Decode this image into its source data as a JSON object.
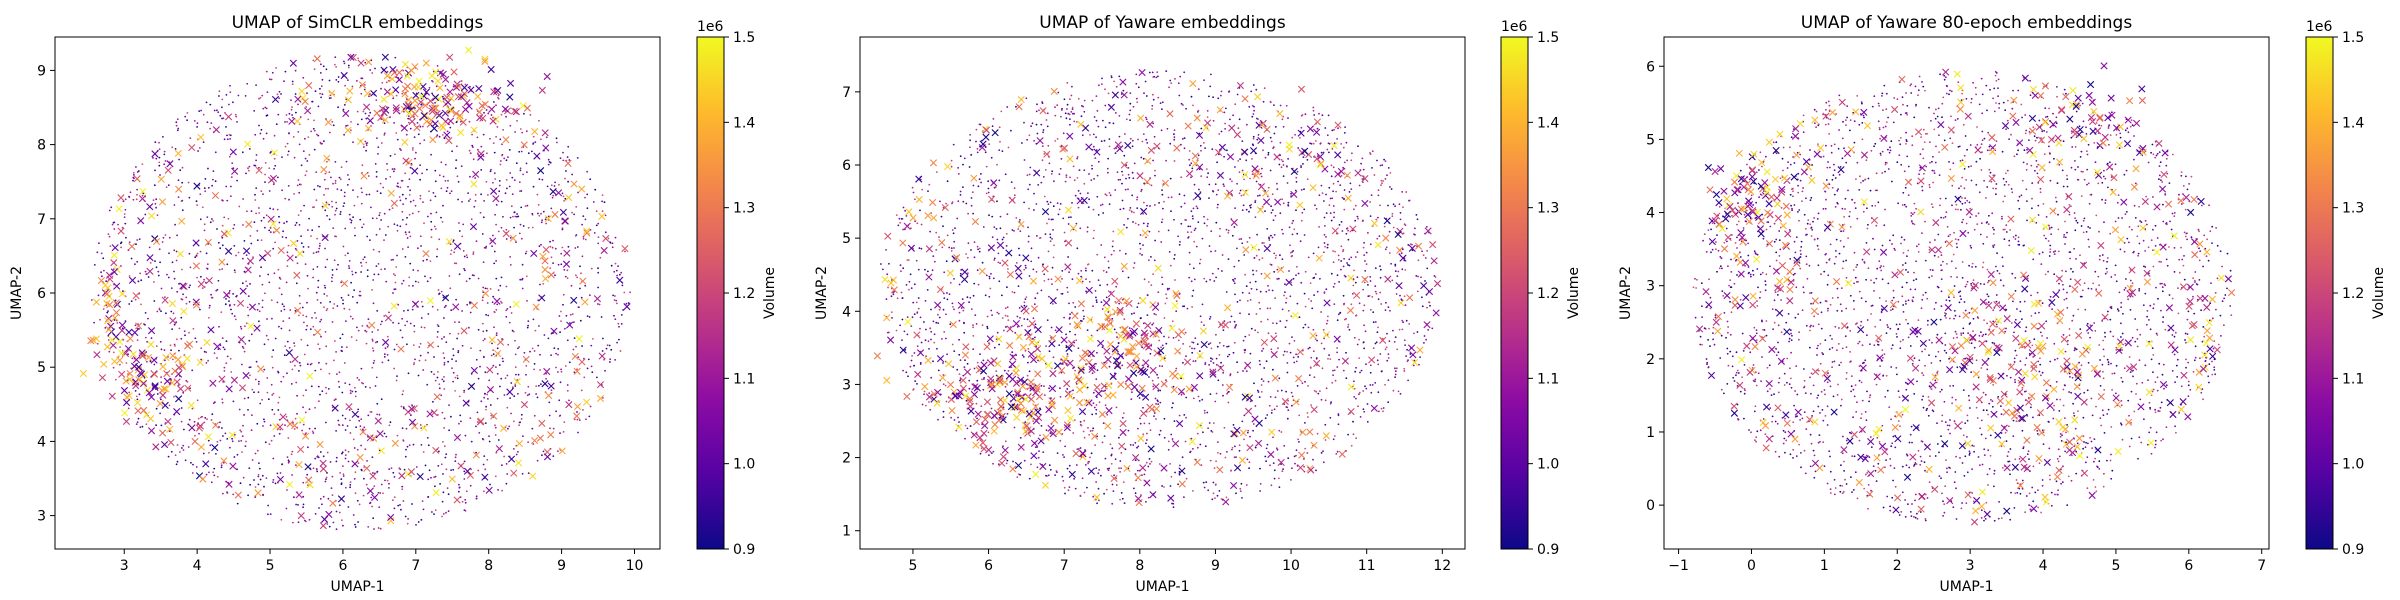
{
  "figure": {
    "colormap": "plasma",
    "marker_styles": {
      "normal": "dot",
      "highlighted": "x"
    }
  },
  "chart_data": [
    {
      "type": "scatter",
      "title": "UMAP of SimCLR embeddings",
      "xlabel": "UMAP-1",
      "ylabel": "UMAP-2",
      "xlim": [
        2.05,
        10.35
      ],
      "ylim": [
        2.55,
        9.45
      ],
      "xticks": [
        3,
        4,
        5,
        6,
        7,
        8,
        9,
        10
      ],
      "yticks": [
        3,
        4,
        5,
        6,
        7,
        8,
        9
      ],
      "colorbar": {
        "label": "Volume",
        "range": [
          0.9,
          1.5
        ],
        "ticks": [
          0.9,
          1.0,
          1.1,
          1.2,
          1.3,
          1.4,
          1.5
        ],
        "exponent": "1e6"
      },
      "point_cloud": {
        "center": [
          6.25,
          6.0
        ],
        "radius": [
          3.7,
          3.2
        ],
        "n_dots": 2600,
        "n_crosses": 380
      },
      "dense_clusters": [
        {
          "x": 7.2,
          "y": 8.6,
          "sx": 0.55,
          "sy": 0.25,
          "n": 120
        },
        {
          "x": 3.3,
          "y": 4.8,
          "sx": 0.35,
          "sy": 0.35,
          "n": 70
        },
        {
          "x": 2.8,
          "y": 5.6,
          "sx": 0.15,
          "sy": 0.3,
          "n": 30
        }
      ]
    },
    {
      "type": "scatter",
      "title": "UMAP of Yaware embeddings",
      "xlabel": "UMAP-1",
      "ylabel": "UMAP-2",
      "xlim": [
        4.3,
        12.3
      ],
      "ylim": [
        0.75,
        7.75
      ],
      "xticks": [
        5,
        6,
        7,
        8,
        9,
        10,
        11,
        12
      ],
      "yticks": [
        1,
        2,
        3,
        4,
        5,
        6,
        7
      ],
      "colorbar": {
        "label": "Volume",
        "range": [
          0.9,
          1.5
        ],
        "ticks": [
          0.9,
          1.0,
          1.1,
          1.2,
          1.3,
          1.4,
          1.5
        ],
        "exponent": "1e6"
      },
      "point_cloud": {
        "center": [
          8.25,
          4.3
        ],
        "radius": [
          3.7,
          3.0
        ],
        "n_dots": 2600,
        "n_crosses": 320
      },
      "dense_clusters": [
        {
          "x": 6.2,
          "y": 2.9,
          "sx": 0.6,
          "sy": 0.35,
          "n": 150
        },
        {
          "x": 7.8,
          "y": 3.5,
          "sx": 0.5,
          "sy": 0.5,
          "n": 130
        },
        {
          "x": 9.8,
          "y": 6.2,
          "sx": 0.6,
          "sy": 0.4,
          "n": 40
        }
      ]
    },
    {
      "type": "scatter",
      "title": "UMAP of Yaware 80-epoch embeddings",
      "xlabel": "UMAP-1",
      "ylabel": "UMAP-2",
      "xlim": [
        -1.2,
        7.1
      ],
      "ylim": [
        -0.6,
        6.4
      ],
      "xticks": [
        -1,
        0,
        1,
        2,
        3,
        4,
        5,
        6,
        7
      ],
      "yticks": [
        0,
        1,
        2,
        3,
        4,
        5,
        6
      ],
      "colorbar": {
        "label": "Volume",
        "range": [
          0.9,
          1.5
        ],
        "ticks": [
          0.9,
          1.0,
          1.1,
          1.2,
          1.3,
          1.4,
          1.5
        ],
        "exponent": "1e6"
      },
      "point_cloud": {
        "center": [
          2.9,
          2.85
        ],
        "radius": [
          3.7,
          3.1
        ],
        "n_dots": 2600,
        "n_crosses": 380
      },
      "dense_clusters": [
        {
          "x": 0.0,
          "y": 4.2,
          "sx": 0.35,
          "sy": 0.35,
          "n": 70
        },
        {
          "x": 3.6,
          "y": 2.0,
          "sx": 0.6,
          "sy": 0.6,
          "n": 120
        },
        {
          "x": 4.6,
          "y": 5.3,
          "sx": 0.4,
          "sy": 0.3,
          "n": 40
        }
      ]
    }
  ]
}
